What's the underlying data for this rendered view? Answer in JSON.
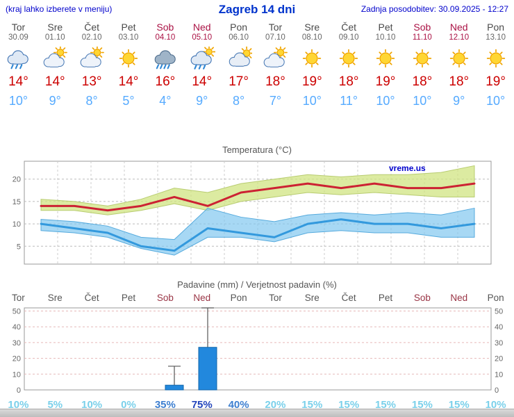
{
  "header": {
    "menu_note": "(kraj lahko izberete v meniju)",
    "title": "Zagreb 14 dni",
    "updated": "Zadnja posodobitev: 30.09.2025 - 12:27"
  },
  "forecast": {
    "degree_symbol": "°",
    "days": [
      {
        "day": "Tor",
        "date": "30.09",
        "weekend": false,
        "icon": "rain",
        "high": 14,
        "low": 10
      },
      {
        "day": "Sre",
        "date": "01.10",
        "weekend": false,
        "icon": "sun-cloud",
        "high": 14,
        "low": 9
      },
      {
        "day": "Čet",
        "date": "02.10",
        "weekend": false,
        "icon": "sun-cloud",
        "high": 13,
        "low": 8
      },
      {
        "day": "Pet",
        "date": "03.10",
        "weekend": false,
        "icon": "sunny",
        "high": 14,
        "low": 5
      },
      {
        "day": "Sob",
        "date": "04.10",
        "weekend": true,
        "icon": "heavy-rain",
        "high": 16,
        "low": 4
      },
      {
        "day": "Ned",
        "date": "05.10",
        "weekend": true,
        "icon": "sun-shower",
        "high": 14,
        "low": 9
      },
      {
        "day": "Pon",
        "date": "06.10",
        "weekend": false,
        "icon": "cloud-sun",
        "high": 17,
        "low": 8
      },
      {
        "day": "Tor",
        "date": "07.10",
        "weekend": false,
        "icon": "sun-cloud",
        "high": 18,
        "low": 7
      },
      {
        "day": "Sre",
        "date": "08.10",
        "weekend": false,
        "icon": "sunny",
        "high": 19,
        "low": 10
      },
      {
        "day": "Čet",
        "date": "09.10",
        "weekend": false,
        "icon": "sunny",
        "high": 18,
        "low": 11
      },
      {
        "day": "Pet",
        "date": "10.10",
        "weekend": false,
        "icon": "sunny",
        "high": 19,
        "low": 10
      },
      {
        "day": "Sob",
        "date": "11.10",
        "weekend": true,
        "icon": "sunny",
        "high": 18,
        "low": 10
      },
      {
        "day": "Ned",
        "date": "12.10",
        "weekend": true,
        "icon": "sunny",
        "high": 18,
        "low": 9
      },
      {
        "day": "Pon",
        "date": "13.10",
        "weekend": false,
        "icon": "sunny",
        "high": 19,
        "low": 10
      }
    ]
  },
  "chart_data": [
    {
      "type": "line",
      "title": "Temperatura (°C)",
      "watermark": "vreme.us",
      "categories": [
        "Tor 30.09",
        "Sre 01.10",
        "Čet 02.10",
        "Pet 03.10",
        "Sob 04.10",
        "Ned 05.10",
        "Pon 06.10",
        "Tor 07.10",
        "Sre 08.10",
        "Čet 09.10",
        "Pet 10.10",
        "Sob 11.10",
        "Ned 12.10",
        "Pon 13.10"
      ],
      "ylim": [
        1,
        24
      ],
      "yticks": [
        5,
        10,
        15,
        20
      ],
      "grid": true,
      "legend": false,
      "series": [
        {
          "name": "max-temperature",
          "color": "#cc2233",
          "values": [
            14,
            14,
            13,
            14,
            16,
            14,
            17,
            18,
            19,
            18,
            19,
            18,
            18,
            19
          ]
        },
        {
          "name": "min-temperature",
          "color": "#3399dd",
          "values": [
            10,
            9,
            8,
            5,
            4,
            9,
            8,
            7,
            10,
            11,
            10,
            10,
            9,
            10
          ]
        }
      ],
      "bands": [
        {
          "name": "max-temperature-range",
          "color": "rgba(208,228,130,0.75)",
          "edge": "#b8cc70",
          "upper": [
            15.5,
            15,
            14,
            15.5,
            18,
            17,
            19,
            20,
            21,
            20.5,
            21,
            21,
            21.5,
            23
          ],
          "lower": [
            13,
            13,
            12,
            13,
            14.5,
            13,
            15,
            16,
            17,
            16.5,
            17,
            16.5,
            16,
            16
          ]
        },
        {
          "name": "min-temperature-range",
          "color": "rgba(130,200,240,0.7)",
          "edge": "#55aadd",
          "upper": [
            11,
            10.5,
            9.5,
            7,
            6.5,
            13.5,
            11.5,
            10.5,
            12,
            12.5,
            12,
            12.5,
            12,
            13.5
          ],
          "lower": [
            8.5,
            8,
            7,
            4.5,
            3,
            7,
            7,
            6,
            8,
            8.5,
            8,
            8,
            7,
            7
          ]
        }
      ]
    },
    {
      "type": "bar",
      "title": "Padavine (mm) / Verjetnost padavin (%)",
      "categories": [
        "Tor",
        "Sre",
        "Čet",
        "Pet",
        "Sob",
        "Ned",
        "Pon",
        "Tor",
        "Sre",
        "Čet",
        "Pet",
        "Sob",
        "Ned",
        "Pon"
      ],
      "weekend": [
        false,
        false,
        false,
        false,
        true,
        true,
        false,
        false,
        false,
        false,
        false,
        true,
        true,
        false
      ],
      "ylim": [
        0,
        52
      ],
      "yticks": [
        0,
        10,
        20,
        30,
        40,
        50
      ],
      "grid": true,
      "legend": false,
      "bar_color": "#2288dd",
      "bar_edge": "#1166aa",
      "values": [
        0,
        0,
        0,
        0,
        3,
        27,
        0,
        0,
        0,
        0,
        0,
        0,
        0,
        0
      ],
      "max_values": [
        0,
        0,
        0,
        0,
        15,
        52,
        0,
        0,
        0,
        0,
        0,
        0,
        0,
        0
      ],
      "probabilities": [
        "10%",
        "5%",
        "10%",
        "0%",
        "35%",
        "75%",
        "40%",
        "20%",
        "15%",
        "15%",
        "15%",
        "15%",
        "15%",
        "10%"
      ],
      "prob_levels": [
        0,
        0,
        0,
        0,
        1,
        2,
        1,
        0,
        0,
        0,
        0,
        0,
        0,
        0
      ],
      "prob_colors": [
        "#7ad0ea",
        "#3d7fd0",
        "#2244bb"
      ]
    }
  ]
}
